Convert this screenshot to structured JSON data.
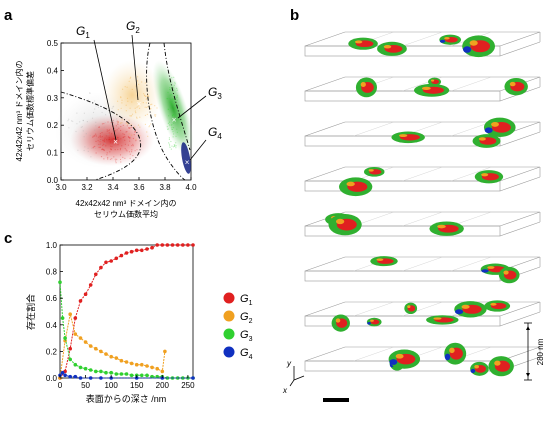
{
  "panels": {
    "a": "a",
    "b": "b",
    "c": "c"
  },
  "colors": {
    "G1": "#e02020",
    "G2": "#f0a020",
    "G3": "#30d030",
    "G4": "#1030c0"
  },
  "chart_data": [
    {
      "type": "scatter",
      "panel": "a",
      "xlabel_line1": "42x42x42 nm³ ドメイン内の",
      "xlabel_line2": "セリウム価数平均",
      "ylabel_line1": "42x42x42 nm³ ドメイン内の",
      "ylabel_line2": "セリウム価数標準偏差",
      "xlim": [
        3.0,
        4.0
      ],
      "ylim": [
        0.0,
        0.5
      ],
      "x_ticks": [
        "3.0",
        "3.2",
        "3.4",
        "3.6",
        "3.8",
        "4.0"
      ],
      "y_ticks": [
        "0.0",
        "0.1",
        "0.2",
        "0.3",
        "0.4",
        "0.5"
      ],
      "cluster_centers": [
        {
          "group": "G1",
          "x": 3.42,
          "y": 0.14
        },
        {
          "group": "G2",
          "x": 3.6,
          "y": 0.28
        },
        {
          "group": "G3",
          "x": 3.87,
          "y": 0.22
        },
        {
          "group": "G4",
          "x": 3.97,
          "y": 0.065
        }
      ],
      "labels": {
        "G1": "G",
        "G1_sub": "1",
        "G2": "G",
        "G2_sub": "2",
        "G3": "G",
        "G3_sub": "3",
        "G4": "G",
        "G4_sub": "4"
      }
    },
    {
      "type": "line",
      "panel": "c",
      "xlabel": "表面からの深さ /nm",
      "ylabel": "存在割合",
      "xlim": [
        0,
        260
      ],
      "ylim": [
        0.0,
        1.0
      ],
      "x_ticks": [
        "0",
        "50",
        "100",
        "150",
        "200",
        "250"
      ],
      "y_ticks": [
        "0.0",
        "0.2",
        "0.4",
        "0.6",
        "0.8",
        "1.0"
      ],
      "series": [
        {
          "name": "G1",
          "x": [
            0,
            10,
            20,
            30,
            40,
            50,
            60,
            70,
            80,
            90,
            100,
            110,
            120,
            130,
            140,
            150,
            160,
            170,
            180,
            190,
            200,
            210,
            220,
            230,
            240,
            250,
            260
          ],
          "values": [
            0.0,
            0.05,
            0.22,
            0.45,
            0.58,
            0.63,
            0.7,
            0.78,
            0.83,
            0.87,
            0.88,
            0.9,
            0.92,
            0.94,
            0.95,
            0.96,
            0.96,
            0.97,
            0.98,
            1.0,
            1.0,
            1.0,
            1.0,
            1.0,
            1.0,
            1.0,
            1.0
          ]
        },
        {
          "name": "G2",
          "x": [
            0,
            10,
            20,
            30,
            40,
            50,
            60,
            70,
            80,
            90,
            100,
            110,
            120,
            130,
            140,
            150,
            160,
            170,
            180,
            190,
            200,
            205
          ],
          "values": [
            0.0,
            0.28,
            0.48,
            0.33,
            0.3,
            0.27,
            0.24,
            0.22,
            0.2,
            0.18,
            0.16,
            0.15,
            0.13,
            0.12,
            0.11,
            0.1,
            0.1,
            0.09,
            0.08,
            0.07,
            0.05,
            0.2
          ]
        },
        {
          "name": "G3",
          "x": [
            0,
            5,
            10,
            20,
            30,
            40,
            50,
            60,
            70,
            80,
            90,
            100,
            110,
            120,
            130,
            140,
            150,
            160,
            170,
            180,
            190,
            200,
            210,
            220,
            230,
            240,
            250,
            260
          ],
          "values": [
            0.72,
            0.45,
            0.3,
            0.14,
            0.1,
            0.08,
            0.07,
            0.06,
            0.05,
            0.05,
            0.04,
            0.04,
            0.03,
            0.03,
            0.03,
            0.02,
            0.02,
            0.02,
            0.02,
            0.01,
            0.01,
            0.01,
            0.0,
            0.0,
            0.0,
            0.0,
            0.0,
            0.0
          ]
        },
        {
          "name": "G4",
          "x": [
            0,
            5,
            10,
            20,
            30,
            40,
            60,
            80,
            100,
            150,
            200,
            260
          ],
          "values": [
            0.02,
            0.04,
            0.02,
            0.01,
            0.01,
            0.0,
            0.0,
            0.0,
            0.0,
            0.0,
            0.0,
            0.0
          ]
        }
      ],
      "legend": [
        {
          "group": "G1",
          "letter": "G",
          "sub": "1"
        },
        {
          "group": "G2",
          "letter": "G",
          "sub": "2"
        },
        {
          "group": "G3",
          "letter": "G",
          "sub": "3"
        },
        {
          "group": "G4",
          "letter": "G",
          "sub": "4"
        }
      ]
    }
  ],
  "panel_b": {
    "y_axis_label": "y",
    "x_axis_label": "x",
    "scale_label": "280 nm"
  }
}
